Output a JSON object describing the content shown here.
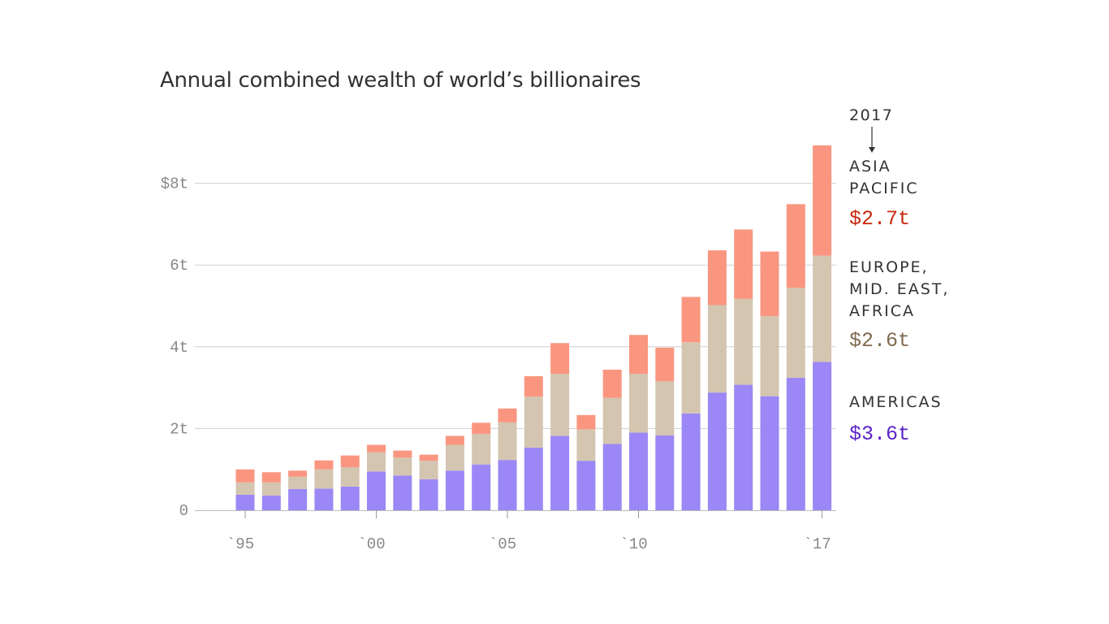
{
  "title": "Annual combined wealth of world’s billionaires",
  "chart_data": {
    "type": "bar",
    "stacked": true,
    "title": "Annual combined wealth of world’s billionaires",
    "x": [
      1995,
      1996,
      1997,
      1998,
      1999,
      2000,
      2001,
      2002,
      2003,
      2004,
      2005,
      2006,
      2007,
      2008,
      2009,
      2010,
      2011,
      2012,
      2013,
      2014,
      2015,
      2016,
      2017
    ],
    "xticks": [
      {
        "year": 1995,
        "label": "`95"
      },
      {
        "year": 2000,
        "label": "`00"
      },
      {
        "year": 2005,
        "label": "`05"
      },
      {
        "year": 2010,
        "label": "`10"
      },
      {
        "year": 2017,
        "label": "`17"
      }
    ],
    "yticks": [
      {
        "value": 0,
        "label": "0"
      },
      {
        "value": 2,
        "label": "2t"
      },
      {
        "value": 4,
        "label": "4t"
      },
      {
        "value": 6,
        "label": "6t"
      },
      {
        "value": 8,
        "label": "$8t"
      }
    ],
    "ylim": [
      0,
      9
    ],
    "grid": true,
    "series": [
      {
        "key": "americas",
        "color": "#9b87f5",
        "values": [
          0.38,
          0.36,
          0.52,
          0.53,
          0.58,
          0.95,
          0.85,
          0.76,
          0.97,
          1.12,
          1.23,
          1.53,
          1.82,
          1.21,
          1.62,
          1.9,
          1.83,
          2.37,
          2.88,
          3.07,
          2.79,
          3.24,
          3.63
        ]
      },
      {
        "key": "europe_mideast_africa",
        "color": "#d4c5b1",
        "values": [
          0.3,
          0.32,
          0.3,
          0.47,
          0.47,
          0.47,
          0.44,
          0.45,
          0.63,
          0.75,
          0.92,
          1.25,
          1.52,
          0.77,
          1.13,
          1.44,
          1.33,
          1.74,
          2.14,
          2.1,
          1.96,
          2.2,
          2.6
        ]
      },
      {
        "key": "asia_pacific",
        "color": "#fa9680",
        "values": [
          0.32,
          0.25,
          0.15,
          0.22,
          0.29,
          0.18,
          0.17,
          0.15,
          0.22,
          0.27,
          0.34,
          0.5,
          0.75,
          0.35,
          0.69,
          0.95,
          0.82,
          1.11,
          1.34,
          1.7,
          1.58,
          2.05,
          2.7
        ]
      }
    ]
  },
  "annotation": {
    "year": "2017",
    "asia_label_1": "ASIA",
    "asia_label_2": "PACIFIC",
    "asia_value": "$2.7t",
    "asia_color": "#c8290e",
    "emea_label_1": "EUROPE,",
    "emea_label_2": "MID. EAST,",
    "emea_label_3": "AFRICA",
    "emea_value": "$2.6t",
    "emea_color": "#806a4e",
    "americas_label": "AMERICAS",
    "americas_value": "$3.6t",
    "americas_color": "#5a23c8"
  }
}
